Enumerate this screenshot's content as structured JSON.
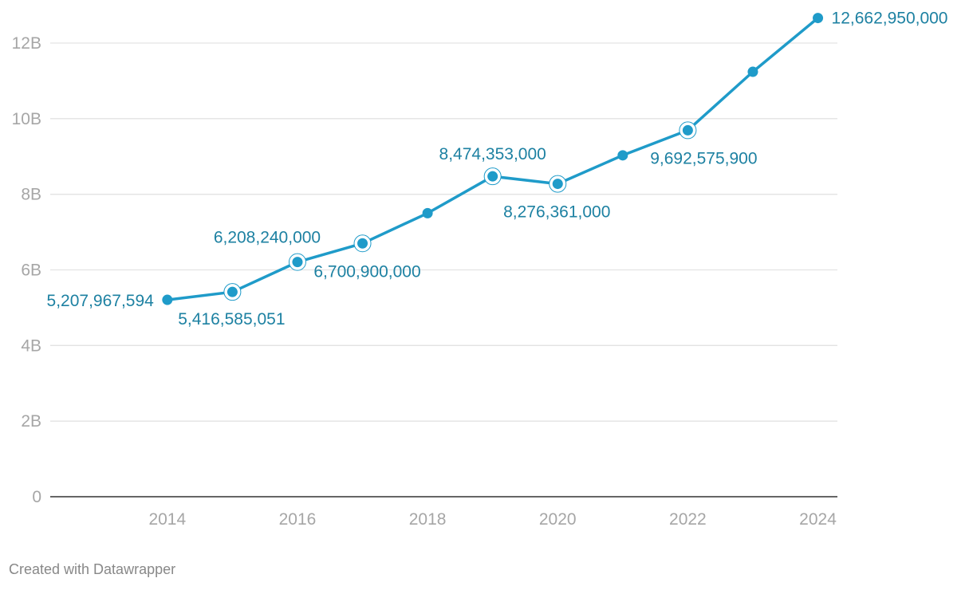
{
  "chart_data": {
    "type": "line",
    "x": [
      2014,
      2015,
      2016,
      2017,
      2018,
      2019,
      2020,
      2021,
      2022,
      2023,
      2024
    ],
    "series": [
      {
        "values": [
          5207967594,
          5416585051,
          6208240000,
          6700900000,
          7500000000,
          8474353000,
          8276361000,
          9030000000,
          9692575900,
          11240000000,
          12662950000
        ]
      }
    ],
    "data_labels": [
      {
        "index": 0,
        "text": "5,207,967,594",
        "position": "left"
      },
      {
        "index": 1,
        "text": "5,416,585,051",
        "position": "below"
      },
      {
        "index": 2,
        "text": "6,208,240,000",
        "position": "above"
      },
      {
        "index": 3,
        "text": "6,700,900,000",
        "position": "below"
      },
      {
        "index": 5,
        "text": "8,474,353,000",
        "position": "above"
      },
      {
        "index": 6,
        "text": "8,276,361,000",
        "position": "below"
      },
      {
        "index": 8,
        "text": "9,692,575,900",
        "position": "below"
      },
      {
        "index": 10,
        "text": "12,662,950,000",
        "position": "right"
      }
    ],
    "highlighted_points": [
      1,
      2,
      3,
      5,
      6,
      8
    ],
    "y_ticks": [
      {
        "value": 0,
        "label": "0"
      },
      {
        "value": 2000000000,
        "label": "2B"
      },
      {
        "value": 4000000000,
        "label": "4B"
      },
      {
        "value": 6000000000,
        "label": "6B"
      },
      {
        "value": 8000000000,
        "label": "8B"
      },
      {
        "value": 10000000000,
        "label": "10B"
      },
      {
        "value": 12000000000,
        "label": "12B"
      }
    ],
    "x_ticks": [
      {
        "value": 2014,
        "label": "2014"
      },
      {
        "value": 2016,
        "label": "2016"
      },
      {
        "value": 2018,
        "label": "2018"
      },
      {
        "value": 2020,
        "label": "2020"
      },
      {
        "value": 2022,
        "label": "2022"
      },
      {
        "value": 2024,
        "label": "2024"
      }
    ],
    "xlim": [
      2012.2,
      2024.3
    ],
    "ylim": [
      0,
      12000000000
    ],
    "grid": true,
    "line_color": "#1f9bc9",
    "label_color": "#1d81a2",
    "tick_color": "#a6a6a6",
    "grid_color": "#e3e3e3",
    "axis_color": "#333333"
  },
  "footer": {
    "credit": "Created with Datawrapper"
  }
}
